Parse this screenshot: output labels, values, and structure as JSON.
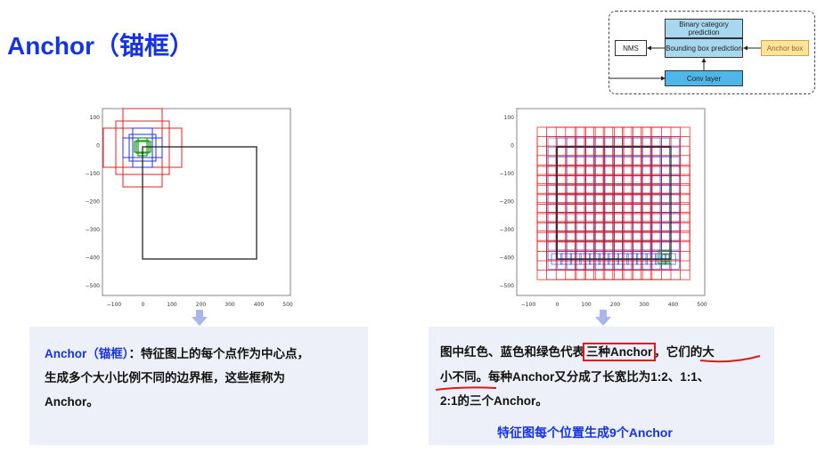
{
  "title": "Anchor（锚框）",
  "diagram": {
    "binary_category": "Binary category prediction",
    "bounding_box": "Bounding box prediction",
    "nms": "NMS",
    "anchor_box": "Anchor box",
    "conv_layer": "Conv layer",
    "colors": {
      "cyan": "#a8d8f0",
      "yellow": "#fde49a"
    }
  },
  "left_plot": {
    "y_ticks": [
      "100",
      "0",
      "−100",
      "−200",
      "−300",
      "−400",
      "−500"
    ],
    "x_ticks": [
      "−100",
      "0",
      "100",
      "200",
      "300",
      "400",
      "500"
    ]
  },
  "right_plot": {
    "y_ticks": [
      "100",
      "0",
      "−100",
      "−200",
      "−300",
      "−400",
      "−500"
    ],
    "x_ticks": [
      "−100",
      "0",
      "100",
      "200",
      "300",
      "400",
      "500"
    ]
  },
  "left_panel": {
    "term": "Anchor（锚框）",
    "line1_rest": "：特征图上的每个点作为中心点，",
    "line2": "生成多个大小比例不同的边界框，这些框称为",
    "line3": "Anchor。"
  },
  "right_panel": {
    "line1_a": "图中红色、蓝色和绿色代表",
    "line1_box": "三种Anchor",
    "line1_b": "，它们的大",
    "line2_a": "小不同。",
    "line2_b": "每种Anchor又分成了长宽比为1:2、1:1、",
    "line3": "2:1的三个Anchor。",
    "caption": "特征图每个位置生成9个Anchor"
  }
}
